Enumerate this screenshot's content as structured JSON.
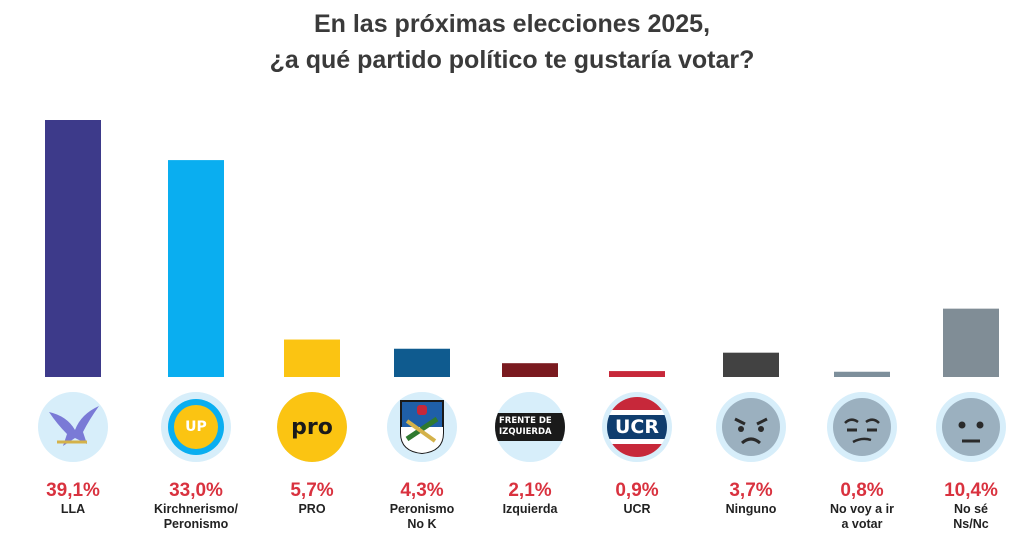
{
  "chart_data": {
    "type": "bar",
    "title_lines": [
      "En las próximas elecciones 2025,",
      "¿a qué partido político te gustaría votar?"
    ],
    "categories": [
      {
        "label_lines": [
          "LLA"
        ],
        "value": 39.1,
        "value_label": "39,1%",
        "color": "#3d3a8a",
        "icon": "lla-eagle-icon"
      },
      {
        "label_lines": [
          "Kirchnerismo/",
          "Peronismo"
        ],
        "value": 33.0,
        "value_label": "33,0%",
        "color": "#0aaef0",
        "icon": "up-logo-icon",
        "icon_text": "UP"
      },
      {
        "label_lines": [
          "PRO"
        ],
        "value": 5.7,
        "value_label": "5,7%",
        "color": "#fbc412",
        "icon": "pro-logo-icon",
        "icon_text": "pro"
      },
      {
        "label_lines": [
          "Peronismo",
          "No K"
        ],
        "value": 4.3,
        "value_label": "4,3%",
        "color": "#0f5b8f",
        "icon": "peronist-shield-icon"
      },
      {
        "label_lines": [
          "Izquierda"
        ],
        "value": 2.1,
        "value_label": "2,1%",
        "color": "#7a1a1f",
        "icon": "fit-logo-icon",
        "icon_text_lines": [
          "FRENTE DE",
          "IZQUIERDA"
        ]
      },
      {
        "label_lines": [
          "UCR"
        ],
        "value": 0.9,
        "value_label": "0,9%",
        "color": "#c7283a",
        "icon": "ucr-logo-icon",
        "icon_text": "UCR"
      },
      {
        "label_lines": [
          "Ninguno"
        ],
        "value": 3.7,
        "value_label": "3,7%",
        "color": "#424242",
        "icon": "angry-face-icon"
      },
      {
        "label_lines": [
          "No voy a ir",
          "a votar"
        ],
        "value": 0.8,
        "value_label": "0,8%",
        "color": "#7d8f9b",
        "icon": "unamused-face-icon"
      },
      {
        "label_lines": [
          "No sé",
          "Ns/Nc"
        ],
        "value": 10.4,
        "value_label": "10,4%",
        "color": "#808d96",
        "icon": "neutral-face-icon"
      }
    ],
    "ylim": [
      0,
      40
    ],
    "grid": false,
    "legend": "none"
  }
}
